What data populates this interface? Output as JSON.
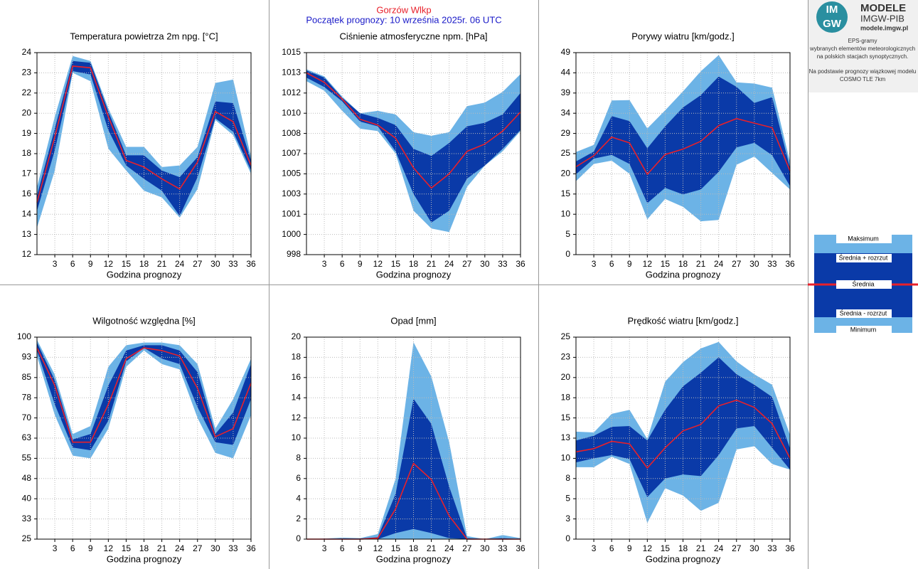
{
  "header": {
    "station": "Gorzów Wlkp",
    "start": "Początek prognozy: 10 września 2025r. 06 UTC"
  },
  "logo": {
    "mark_top": "IM",
    "mark_bottom": "GW",
    "name": "MODELE",
    "org": "IMGW-PIB",
    "url": "modele.imgw.pl"
  },
  "info": [
    "EPS-gramy",
    "wybranych elementów meteorologicznych",
    "na polskich stacjach  synoptycznych.",
    "Na podstawie prognozy wiązkowej modelu",
    "COSMO TLE 7km"
  ],
  "chart_data": [
    {
      "type": "band",
      "title": "Temperatura powietrza 2m npg. [°C]",
      "x_label": "Godzina prognozy",
      "x": [
        0,
        3,
        6,
        9,
        12,
        15,
        18,
        21,
        24,
        27,
        30,
        33,
        36
      ],
      "xlim": [
        0,
        36
      ],
      "xticks": [
        3,
        6,
        9,
        12,
        15,
        18,
        21,
        24,
        27,
        30,
        33,
        36
      ],
      "ylim": [
        12,
        24
      ],
      "yticks": [
        12,
        {
          "value": 13.2,
          "label": "13"
        },
        {
          "value": 14.4,
          "label": "14"
        },
        {
          "value": 15.6,
          "label": "16"
        },
        {
          "value": 16.8,
          "label": "17"
        },
        18,
        {
          "value": 19.2,
          "label": "19"
        },
        {
          "value": 20.4,
          "label": "20"
        },
        {
          "value": 21.6,
          "label": "22"
        },
        {
          "value": 22.8,
          "label": "23"
        },
        24
      ],
      "grid": true,
      "series": [
        {
          "name": "Maksimum",
          "color": "#6cb3e6",
          "values": [
            16.0,
            20.2,
            23.8,
            23.5,
            20.7,
            18.4,
            18.4,
            17.2,
            17.3,
            18.4,
            22.2,
            22.4,
            17.8
          ]
        },
        {
          "name": "Średnia + rozrzut",
          "color": "#0a3aa8",
          "values": [
            15.5,
            19.5,
            23.5,
            23.4,
            20.5,
            17.9,
            17.9,
            17.0,
            16.6,
            17.8,
            21.1,
            21.0,
            17.6
          ]
        },
        {
          "name": "Średnia",
          "color": "#e8202a",
          "values": [
            15.1,
            19.0,
            23.2,
            23.1,
            20.2,
            17.6,
            17.2,
            16.5,
            15.9,
            17.5,
            20.5,
            19.9,
            17.3
          ]
        },
        {
          "name": "Średnia - rozrzut",
          "color": "#0a3aa8",
          "values": [
            14.6,
            18.2,
            22.9,
            22.7,
            19.4,
            17.3,
            16.5,
            15.8,
            14.3,
            16.6,
            20.1,
            19.3,
            17.0
          ]
        },
        {
          "name": "Minimum",
          "color": "#6cb3e6",
          "values": [
            13.6,
            17.0,
            22.8,
            22.3,
            18.3,
            17.0,
            15.8,
            15.4,
            14.2,
            15.9,
            20.0,
            19.1,
            16.8
          ]
        }
      ]
    },
    {
      "type": "band",
      "title": "Ciśnienie atmosferyczne npm. [hPa]",
      "x_label": "Godzina prognozy",
      "x": [
        0,
        3,
        6,
        9,
        12,
        15,
        18,
        21,
        24,
        27,
        30,
        33,
        36
      ],
      "xlim": [
        0,
        36
      ],
      "xticks": [
        3,
        6,
        9,
        12,
        15,
        18,
        21,
        24,
        27,
        30,
        33,
        36
      ],
      "ylim": [
        998,
        1015
      ],
      "yticks": [
        998,
        {
          "value": 999.7,
          "label": "1000"
        },
        {
          "value": 1001.4,
          "label": "1001"
        },
        {
          "value": 1003.1,
          "label": "1003"
        },
        {
          "value": 1004.8,
          "label": "1005"
        },
        {
          "value": 1006.5,
          "label": "1007"
        },
        {
          "value": 1008.2,
          "label": "1008"
        },
        {
          "value": 1009.9,
          "label": "1010"
        },
        {
          "value": 1011.6,
          "label": "1012"
        },
        {
          "value": 1013.3,
          "label": "1013"
        },
        1015
      ],
      "grid": true,
      "series": [
        {
          "color": "#6cb3e6",
          "values": [
            1013.6,
            1013.0,
            1011.3,
            1009.9,
            1010.1,
            1009.8,
            1008.3,
            1008.0,
            1008.3,
            1010.5,
            1010.8,
            1011.7,
            1013.2
          ]
        },
        {
          "color": "#0a3aa8",
          "values": [
            1013.5,
            1012.9,
            1011.2,
            1009.9,
            1009.5,
            1008.9,
            1006.9,
            1006.3,
            1007.4,
            1008.8,
            1009.1,
            1009.8,
            1011.6
          ]
        },
        {
          "color": "#e8202a",
          "values": [
            1013.3,
            1012.5,
            1011.1,
            1009.4,
            1008.9,
            1007.8,
            1005.3,
            1003.6,
            1004.8,
            1006.7,
            1007.3,
            1008.4,
            1010.0
          ]
        },
        {
          "color": "#0a3aa8",
          "values": [
            1012.9,
            1012.1,
            1010.9,
            1009.2,
            1008.8,
            1006.7,
            1003.1,
            1000.7,
            1001.7,
            1004.4,
            1005.5,
            1006.9,
            1008.5
          ]
        },
        {
          "color": "#6cb3e6",
          "values": [
            1012.6,
            1011.8,
            1010.1,
            1008.6,
            1008.4,
            1006.5,
            1001.7,
            1000.2,
            999.9,
            1003.7,
            1005.5,
            1006.7,
            1008.4
          ]
        }
      ]
    },
    {
      "type": "band",
      "title": "Porywy wiatru [km/godz.]",
      "x_label": "Godzina prognozy",
      "x": [
        0,
        3,
        6,
        9,
        12,
        15,
        18,
        21,
        24,
        27,
        30,
        33,
        36
      ],
      "xlim": [
        0,
        36
      ],
      "xticks": [
        3,
        6,
        9,
        12,
        15,
        18,
        21,
        24,
        27,
        30,
        33,
        36
      ],
      "ylim": [
        0,
        49
      ],
      "yticks": [
        0,
        {
          "value": 4.9,
          "label": "5"
        },
        {
          "value": 9.8,
          "label": "10"
        },
        {
          "value": 14.7,
          "label": "15"
        },
        {
          "value": 19.6,
          "label": "20"
        },
        {
          "value": 24.5,
          "label": "25"
        },
        {
          "value": 29.4,
          "label": "29"
        },
        {
          "value": 34.3,
          "label": "34"
        },
        {
          "value": 39.2,
          "label": "39"
        },
        {
          "value": 44.1,
          "label": "44"
        },
        49
      ],
      "grid": true,
      "series": [
        {
          "color": "#6cb3e6",
          "values": [
            24.9,
            26.6,
            37.4,
            37.5,
            30.6,
            35.0,
            39.6,
            44.5,
            48.4,
            41.8,
            41.5,
            40.5,
            22.5
          ]
        },
        {
          "color": "#0a3aa8",
          "values": [
            22.6,
            25.0,
            33.6,
            32.4,
            25.8,
            31.1,
            35.7,
            38.7,
            43.2,
            40.7,
            36.8,
            38.2,
            21.0
          ]
        },
        {
          "color": "#e8202a",
          "values": [
            21.3,
            24.0,
            28.5,
            27.1,
            19.5,
            24.3,
            25.6,
            27.5,
            31.3,
            33.0,
            31.9,
            30.8,
            20.3
          ]
        },
        {
          "color": "#0a3aa8",
          "values": [
            19.5,
            23.3,
            24.2,
            22.0,
            12.5,
            16.2,
            14.6,
            15.8,
            20.1,
            26.0,
            27.1,
            24.1,
            16.6
          ]
        },
        {
          "color": "#6cb3e6",
          "values": [
            17.8,
            22.0,
            22.8,
            19.6,
            8.6,
            13.5,
            11.6,
            8.1,
            8.4,
            21.8,
            23.8,
            19.8,
            15.8
          ]
        }
      ]
    },
    {
      "type": "band",
      "title": "Wilgotność względna [%]",
      "x_label": "Godzina prognozy",
      "x": [
        0,
        3,
        6,
        9,
        12,
        15,
        18,
        21,
        24,
        27,
        30,
        33,
        36
      ],
      "xlim": [
        0,
        36
      ],
      "xticks": [
        3,
        6,
        9,
        12,
        15,
        18,
        21,
        24,
        27,
        30,
        33,
        36
      ],
      "ylim": [
        25,
        100
      ],
      "yticks": [
        25,
        {
          "value": 32.5,
          "label": "33"
        },
        40,
        {
          "value": 47.5,
          "label": "48"
        },
        55,
        {
          "value": 62.5,
          "label": "63"
        },
        70,
        {
          "value": 77.5,
          "label": "78"
        },
        85,
        {
          "value": 92.5,
          "label": "93"
        },
        100
      ],
      "grid": true,
      "series": [
        {
          "color": "#6cb3e6",
          "values": [
            99,
            86,
            64,
            67,
            89,
            97,
            98,
            98,
            97,
            90,
            66,
            77,
            92
          ]
        },
        {
          "color": "#0a3aa8",
          "values": [
            98,
            84,
            62,
            64,
            82,
            95,
            97,
            97,
            95,
            87,
            64,
            72,
            90
          ]
        },
        {
          "color": "#e8202a",
          "values": [
            96,
            82,
            61,
            61,
            75,
            92,
            96,
            95,
            93,
            81,
            63,
            66,
            83
          ]
        },
        {
          "color": "#0a3aa8",
          "values": [
            95,
            75,
            59,
            58,
            69,
            91,
            96,
            92,
            90,
            74,
            61,
            60,
            77
          ]
        },
        {
          "color": "#6cb3e6",
          "values": [
            93,
            71,
            56,
            55,
            66,
            89,
            95,
            90,
            88,
            70,
            57,
            55,
            71
          ]
        }
      ]
    },
    {
      "type": "band",
      "title": "Opad [mm]",
      "x_label": "Godzina prognozy",
      "x": [
        0,
        3,
        6,
        9,
        12,
        15,
        18,
        21,
        24,
        27,
        30,
        33,
        36
      ],
      "xlim": [
        0,
        36
      ],
      "xticks": [
        3,
        6,
        9,
        12,
        15,
        18,
        21,
        24,
        27,
        30,
        33,
        36
      ],
      "ylim": [
        0,
        20
      ],
      "yticks": [
        0,
        2,
        4,
        6,
        8,
        10,
        12,
        14,
        16,
        18,
        20
      ],
      "grid": true,
      "series": [
        {
          "color": "#6cb3e6",
          "values": [
            0,
            0.05,
            0.15,
            0.1,
            0.5,
            6.0,
            19.5,
            16.1,
            9.6,
            0.3,
            0,
            0.4,
            0.1
          ]
        },
        {
          "color": "#0a3aa8",
          "values": [
            0,
            0,
            0.05,
            0.05,
            0.2,
            4.5,
            13.9,
            11.4,
            5.2,
            0.1,
            0,
            0.1,
            0
          ]
        },
        {
          "color": "#e8202a",
          "values": [
            0,
            0,
            0,
            0,
            0.1,
            3.0,
            7.5,
            5.9,
            2.3,
            0,
            0,
            0,
            0
          ]
        },
        {
          "color": "#0a3aa8",
          "values": [
            0,
            0,
            0,
            0,
            0,
            0.6,
            1.0,
            0.6,
            0.1,
            0,
            0,
            0,
            0
          ]
        },
        {
          "color": "#6cb3e6",
          "values": [
            0,
            0,
            0,
            0,
            0,
            0,
            0,
            0,
            0,
            0,
            0,
            0,
            0
          ]
        }
      ]
    },
    {
      "type": "band",
      "title": "Prędkość wiatru [km/godz.]",
      "x_label": "Godzina prognozy",
      "x": [
        0,
        3,
        6,
        9,
        12,
        15,
        18,
        21,
        24,
        27,
        30,
        33,
        36
      ],
      "xlim": [
        0,
        36
      ],
      "xticks": [
        3,
        6,
        9,
        12,
        15,
        18,
        21,
        24,
        27,
        30,
        33,
        36
      ],
      "ylim": [
        0,
        25
      ],
      "yticks": [
        0,
        {
          "value": 2.5,
          "label": "3"
        },
        5,
        {
          "value": 7.5,
          "label": "8"
        },
        10,
        {
          "value": 12.5,
          "label": "13"
        },
        15,
        {
          "value": 17.5,
          "label": "18"
        },
        20,
        {
          "value": 22.5,
          "label": "23"
        },
        25
      ],
      "grid": true,
      "series": [
        {
          "color": "#6cb3e6",
          "values": [
            13.3,
            13.2,
            15.5,
            16.0,
            12.4,
            19.5,
            21.9,
            23.6,
            24.4,
            22.0,
            20.4,
            19.1,
            12.9
          ]
        },
        {
          "color": "#0a3aa8",
          "values": [
            12.2,
            12.8,
            13.9,
            14.0,
            12.2,
            16.0,
            18.9,
            20.6,
            22.5,
            20.4,
            19.1,
            17.6,
            11.2
          ]
        },
        {
          "color": "#e8202a",
          "values": [
            10.8,
            11.2,
            12.1,
            11.8,
            8.8,
            11.3,
            13.4,
            14.2,
            16.5,
            17.2,
            16.3,
            14.3,
            10.0
          ]
        },
        {
          "color": "#0a3aa8",
          "values": [
            9.5,
            10.0,
            10.4,
            9.9,
            5.2,
            7.5,
            8.0,
            7.8,
            10.4,
            13.7,
            14.0,
            11.3,
            8.6
          ]
        },
        {
          "color": "#6cb3e6",
          "values": [
            8.9,
            8.9,
            10.2,
            9.3,
            2.0,
            6.3,
            5.4,
            3.5,
            4.5,
            11.1,
            11.5,
            9.3,
            8.6
          ]
        }
      ]
    }
  ]
}
